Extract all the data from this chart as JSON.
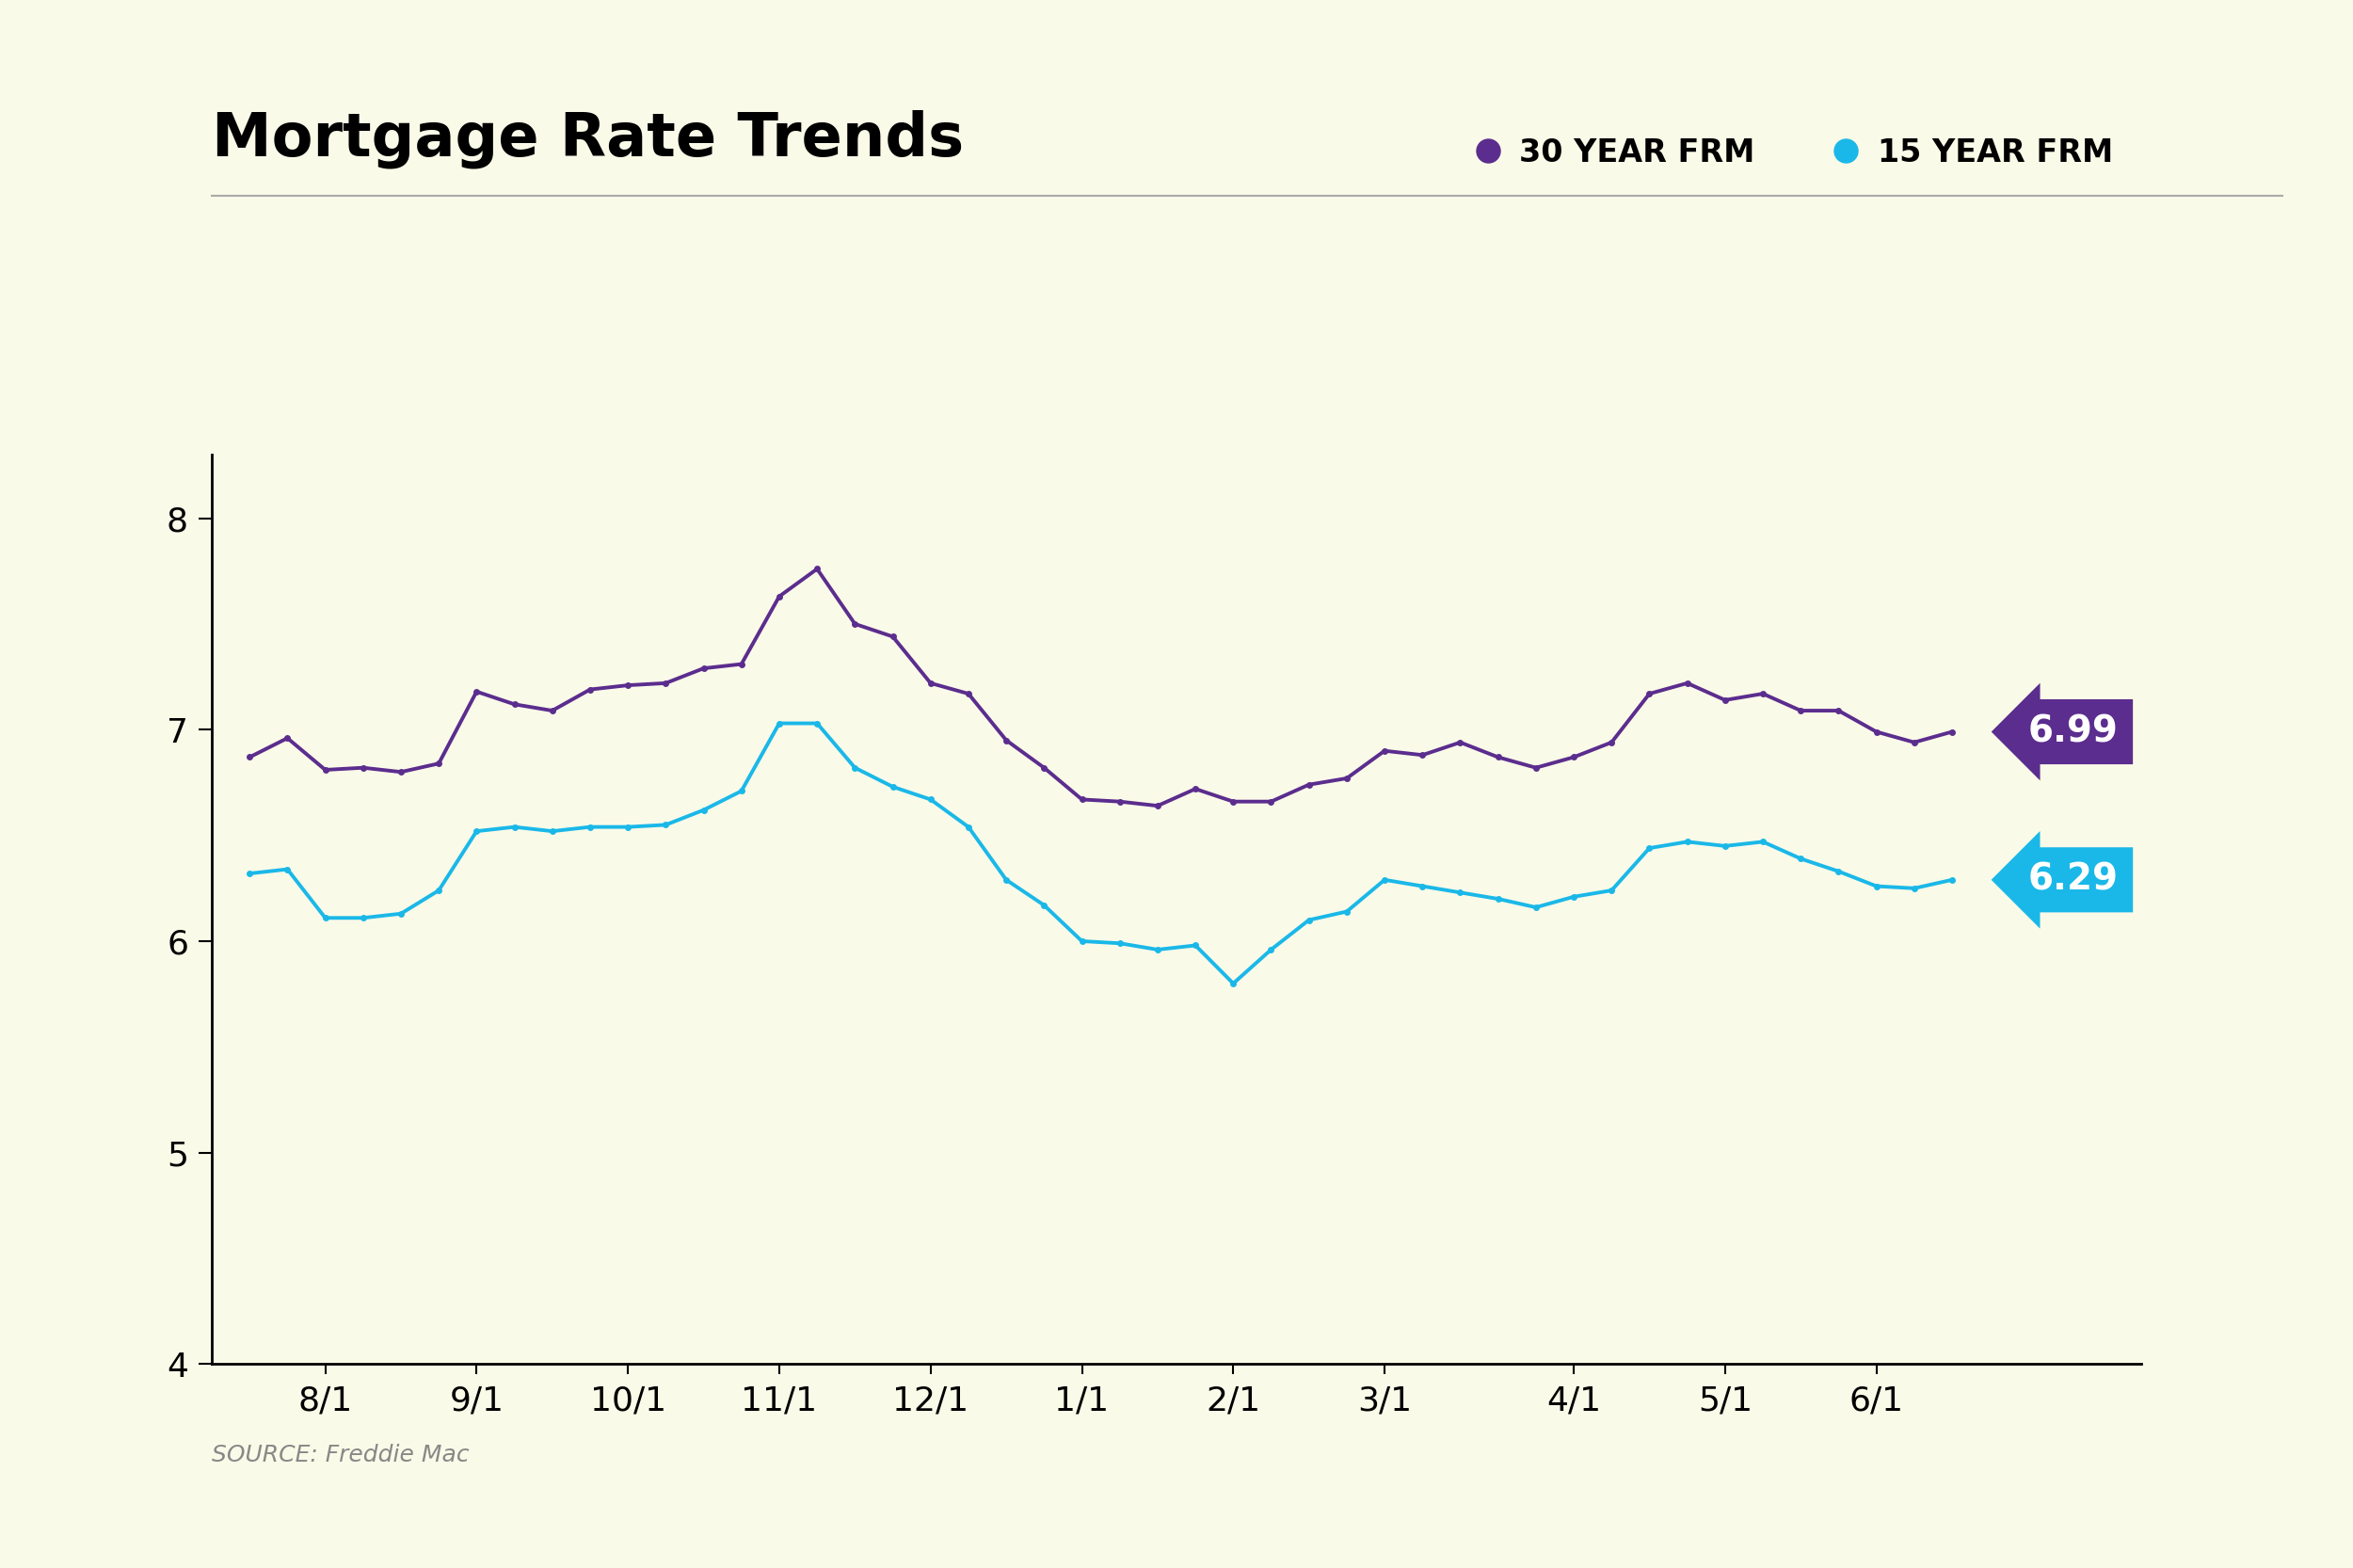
{
  "title": "Mortgage Rate Trends",
  "background_color": "#fafae8",
  "source_text": "SOURCE: Freddie Mac",
  "ylim": [
    4,
    8.3
  ],
  "yticks": [
    4,
    5,
    6,
    7,
    8
  ],
  "x_labels": [
    "8/1",
    "9/1",
    "10/1",
    "11/1",
    "12/1",
    "1/1",
    "2/1",
    "3/1",
    "4/1",
    "5/1",
    "6/1"
  ],
  "color_30yr": "#5b2d8e",
  "color_15yr": "#1ab8e8",
  "label_30yr": "30 YEAR FRM",
  "label_15yr": "15 YEAR FRM",
  "end_value_30yr": "6.99",
  "end_value_15yr": "6.29",
  "data_30yr": [
    6.87,
    6.96,
    6.81,
    6.82,
    6.8,
    6.84,
    7.18,
    7.12,
    7.09,
    7.19,
    7.21,
    7.22,
    7.29,
    7.31,
    7.63,
    7.76,
    7.5,
    7.44,
    7.22,
    7.17,
    6.95,
    6.82,
    6.67,
    6.66,
    6.64,
    6.72,
    6.66,
    6.66,
    6.74,
    6.77,
    6.9,
    6.88,
    6.94,
    6.87,
    6.82,
    6.87,
    6.94,
    7.17,
    7.22,
    7.14,
    7.17,
    7.09,
    7.09,
    6.99,
    6.94,
    6.99
  ],
  "data_15yr": [
    6.32,
    6.34,
    6.11,
    6.11,
    6.13,
    6.24,
    6.52,
    6.54,
    6.52,
    6.54,
    6.54,
    6.55,
    6.62,
    6.71,
    7.03,
    7.03,
    6.82,
    6.73,
    6.67,
    6.54,
    6.29,
    6.17,
    6.0,
    5.99,
    5.96,
    5.98,
    5.8,
    5.96,
    6.1,
    6.14,
    6.29,
    6.26,
    6.23,
    6.2,
    6.16,
    6.21,
    6.24,
    6.44,
    6.47,
    6.45,
    6.47,
    6.39,
    6.33,
    6.26,
    6.25,
    6.29
  ],
  "x_tick_positions": [
    2,
    6,
    10,
    14,
    18,
    22,
    26,
    30,
    35,
    39,
    43
  ]
}
